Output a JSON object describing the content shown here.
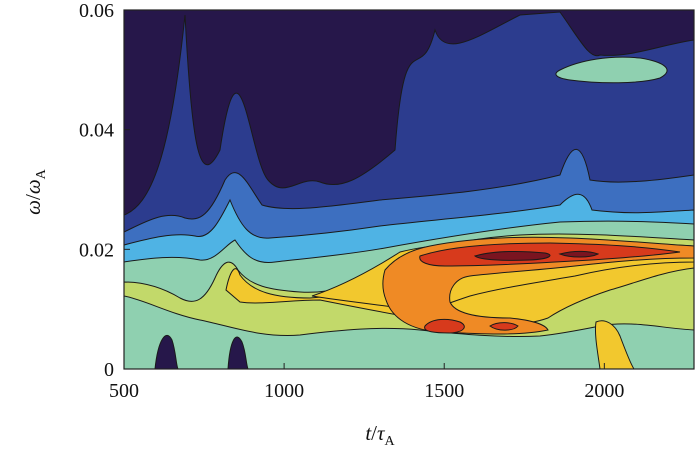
{
  "chart_data": {
    "type": "heatmap",
    "title": "",
    "xlabel": {
      "var": "t",
      "sep": "/",
      "base": "τ",
      "sub": "A"
    },
    "ylabel": {
      "var": "ω",
      "sep": "/",
      "base": "ω",
      "sub": "A"
    },
    "xlim": [
      500,
      2280
    ],
    "ylim": [
      0,
      0.06
    ],
    "x_ticks": [
      {
        "value": 500,
        "label": "500"
      },
      {
        "value": 1000,
        "label": "1000"
      },
      {
        "value": 1500,
        "label": "1500"
      },
      {
        "value": 2000,
        "label": "2000"
      }
    ],
    "y_ticks": [
      {
        "value": 0,
        "label": "0"
      },
      {
        "value": 0.02,
        "label": "0.02"
      },
      {
        "value": 0.04,
        "label": "0.04"
      },
      {
        "value": 0.06,
        "label": "0.06"
      }
    ],
    "colormap": [
      "#26174a",
      "#2c3c8e",
      "#3d6fc0",
      "#4fb3e4",
      "#8fd0b0",
      "#c2d96a",
      "#f2c82e",
      "#ef8a25",
      "#d73a1c",
      "#7a1420"
    ],
    "contour_line_color": "#1a1a1a",
    "grid": false,
    "legend": "none",
    "features": [
      {
        "region": "ridge",
        "t": [
          1350,
          2280
        ],
        "omega": [
          0.016,
          0.021
        ],
        "level": 8
      },
      {
        "region": "peak",
        "t": [
          1580,
          2000
        ],
        "omega": [
          0.0185,
          0.0195
        ],
        "level": 9
      },
      {
        "region": "lower-hotspot",
        "t": [
          1420,
          1780
        ],
        "omega": [
          0.005,
          0.008
        ],
        "level": 8
      },
      {
        "region": "upper-patch",
        "t": [
          2000,
          2250
        ],
        "omega": [
          0.046,
          0.054
        ],
        "level": 5
      }
    ]
  }
}
